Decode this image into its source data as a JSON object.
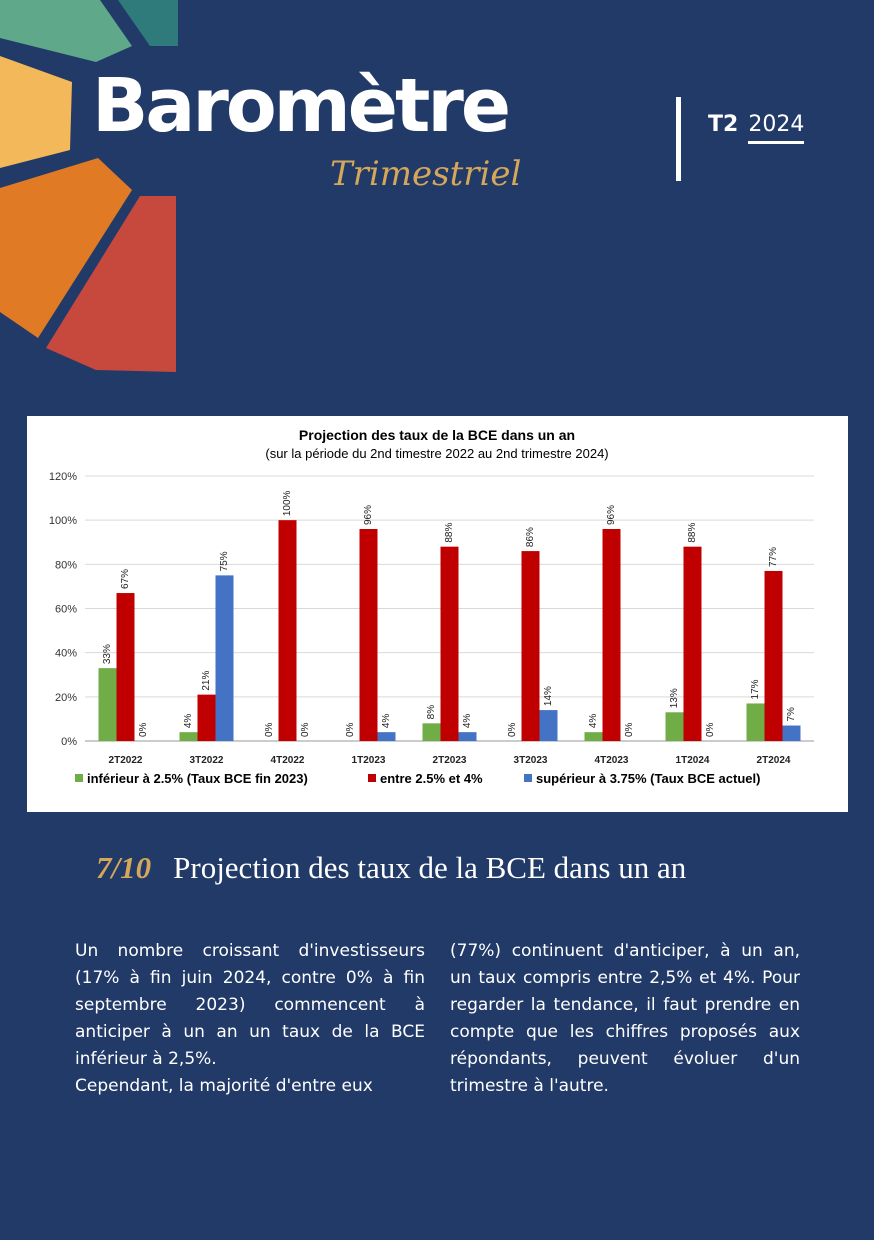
{
  "brand": {
    "title": "Baromètre",
    "subtitle": "Trimestriel"
  },
  "issue": {
    "quarter": "T2",
    "year": "2024"
  },
  "colors": {
    "background": "#223a68",
    "gold": "#d4a75a",
    "series_green": "#70ad47",
    "series_red": "#c00000",
    "series_blue": "#4472c4"
  },
  "chart_data": {
    "type": "bar",
    "title": "Projection des taux de la BCE dans un an",
    "subtitle": "(sur la période du 2nd timestre 2022 au 2nd trimestre 2024)",
    "categories": [
      "2T2022",
      "3T2022",
      "4T2022",
      "1T2023",
      "2T2023",
      "3T2023",
      "4T2023",
      "1T2024",
      "2T2024"
    ],
    "series": [
      {
        "name": "inférieur à 2.5% (Taux BCE fin 2023)",
        "color": "#70ad47",
        "values": [
          33,
          4,
          0,
          0,
          8,
          0,
          4,
          13,
          17
        ],
        "labels": [
          "33%",
          "4%",
          "0%",
          "0%",
          "8%",
          "0%",
          "4%",
          "13%",
          "17%"
        ]
      },
      {
        "name": "entre 2.5% et 4%",
        "color": "#c00000",
        "values": [
          67,
          21,
          100,
          96,
          88,
          86,
          96,
          88,
          77
        ],
        "labels": [
          "67%",
          "21%",
          "100%",
          "96%",
          "88%",
          "86%",
          "96%",
          "88%",
          "77%"
        ]
      },
      {
        "name": "supérieur à 3.75% (Taux BCE actuel)",
        "color": "#4472c4",
        "values": [
          0,
          75,
          0,
          4,
          4,
          14,
          0,
          0,
          7
        ],
        "labels": [
          "0%",
          "75%",
          "0%",
          "4%",
          "4%",
          "14%",
          "0%",
          "0%",
          "7%"
        ]
      }
    ],
    "ylim": [
      0,
      120
    ],
    "yticks": [
      "0%",
      "20%",
      "40%",
      "60%",
      "80%",
      "100%",
      "120%"
    ],
    "grid": true,
    "legend_position": "bottom"
  },
  "section": {
    "number": "7/10",
    "title": "Projection des taux de la BCE dans un an"
  },
  "body": {
    "left_p1": "Un nombre croissant d'investisseurs (17% à fin juin 2024, contre 0% à fin septembre 2023) commencent à anticiper à un an un taux de la BCE inférieur à 2,5%.",
    "left_p2": "Cependant, la majorité d'entre eux",
    "right_p1": "(77%) continuent d'anticiper, à un an, un taux compris entre 2,5% et 4%. Pour regarder la tendance, il faut prendre en compte que les chiffres proposés aux répondants, peuvent évoluer d'un trimestre à l'autre."
  }
}
